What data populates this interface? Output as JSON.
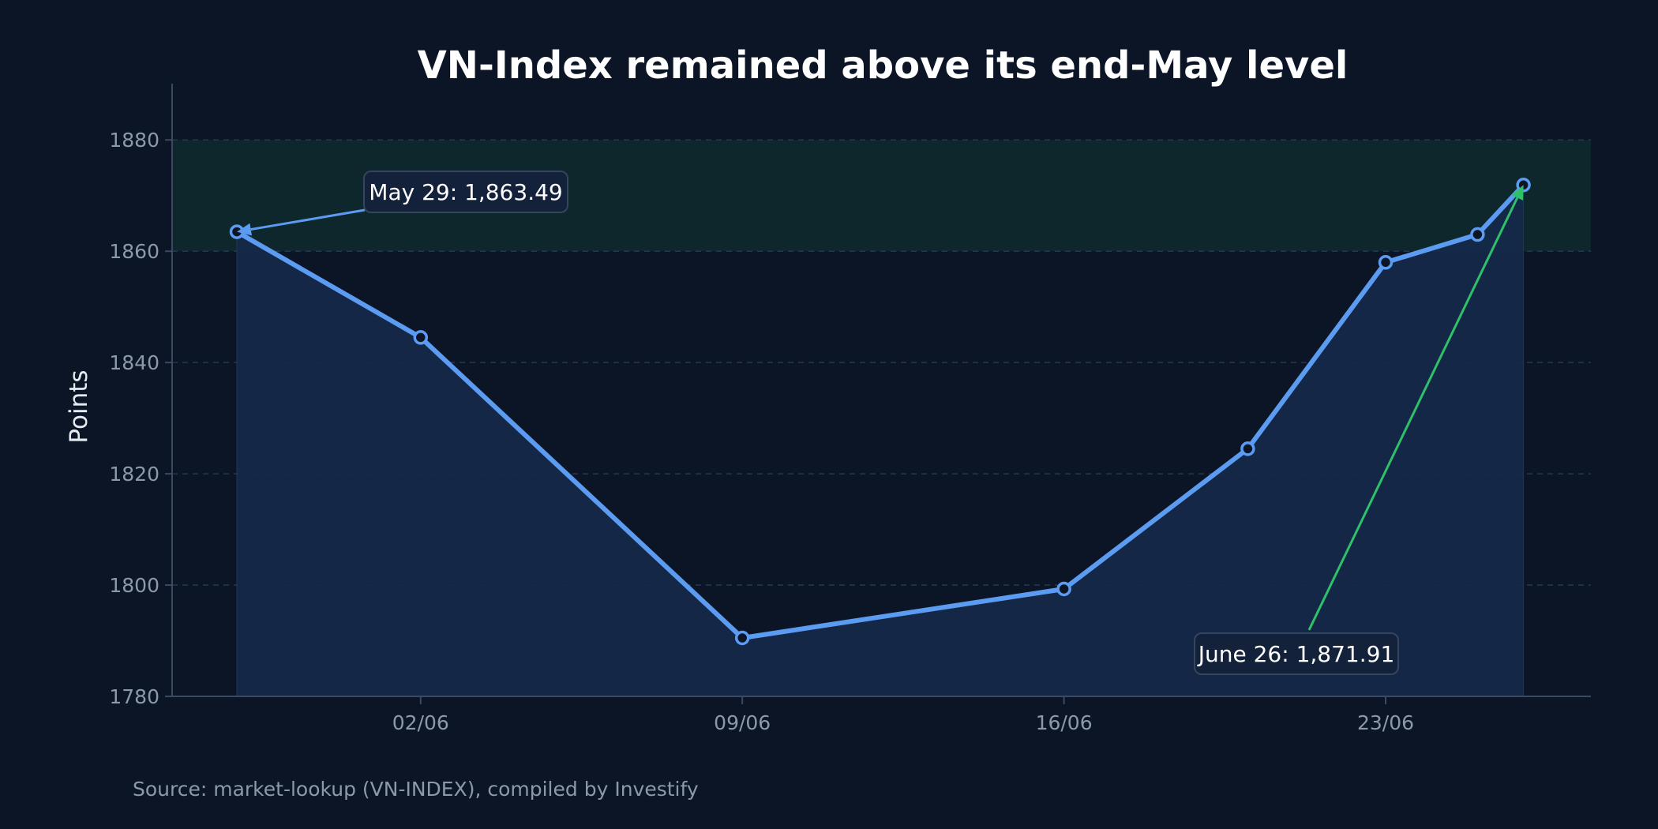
{
  "chart_data": {
    "type": "line",
    "title": "VN-Index remained above its end-May level",
    "xlabel": "",
    "ylabel": "Points",
    "source": "Source: market-lookup (VN-INDEX), compiled by Investify",
    "x_ticks": [
      {
        "date": "2025-06-02",
        "label": "02/06"
      },
      {
        "date": "2025-06-09",
        "label": "09/06"
      },
      {
        "date": "2025-06-16",
        "label": "16/06"
      },
      {
        "date": "2025-06-23",
        "label": "23/06"
      }
    ],
    "ylim": [
      1780,
      1885
    ],
    "y_ticks": [
      1780,
      1800,
      1820,
      1840,
      1860,
      1880
    ],
    "grid": true,
    "highlight_band": [
      1860,
      1880
    ],
    "series": [
      {
        "points": [
          {
            "date": "2025-05-29",
            "value": 1863.49
          },
          {
            "date": "2025-06-02",
            "value": 1844.5
          },
          {
            "date": "2025-06-09",
            "value": 1790.5
          },
          {
            "date": "2025-06-16",
            "value": 1799.3
          },
          {
            "date": "2025-06-20",
            "value": 1824.5
          },
          {
            "date": "2025-06-23",
            "value": 1858.0
          },
          {
            "date": "2025-06-25",
            "value": 1863.0
          },
          {
            "date": "2025-06-26",
            "value": 1871.91
          }
        ]
      }
    ],
    "annotations": [
      {
        "text": "May 29: 1,863.49",
        "target_date": "2025-05-29",
        "target_value": 1863.49,
        "color": "#5b9cf2"
      },
      {
        "text": "June 26: 1,871.91",
        "target_date": "2025-06-26",
        "target_value": 1871.91,
        "color": "#2fc06a"
      }
    ],
    "colors": {
      "line": "#5b9cf2",
      "area": "#15294a",
      "band": "#0e2a2e",
      "background": "#0b1526",
      "grid": "#26384f",
      "axis": "#3a4a60"
    }
  }
}
